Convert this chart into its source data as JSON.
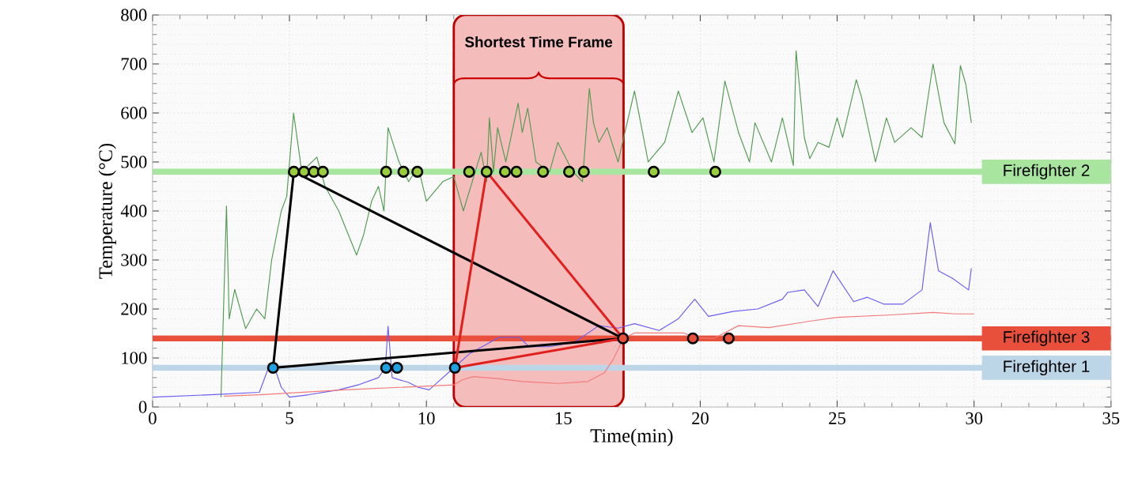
{
  "chart_data": {
    "type": "line",
    "xlabel": "Time(min)",
    "ylabel": "Temperature (°C)",
    "xlim": [
      0,
      35
    ],
    "ylim": [
      0,
      800
    ],
    "xticks": [
      0,
      5,
      10,
      15,
      20,
      25,
      30,
      35
    ],
    "yticks": [
      0,
      100,
      200,
      300,
      400,
      500,
      600,
      700,
      800
    ],
    "grid": true,
    "marker": "none",
    "line_style": "solid",
    "series": [
      {
        "type": "line",
        "color": "#4f9a4f",
        "x": [
          2.5,
          2.7,
          2.8,
          3.0,
          3.4,
          3.8,
          4.1,
          4.35,
          4.7,
          4.9,
          5.15,
          5.45,
          6.0,
          6.3,
          6.8,
          7.45,
          7.7,
          8.0,
          8.25,
          8.45,
          8.6,
          9.0,
          9.35,
          9.7,
          10.0,
          10.6,
          11.0,
          11.35,
          12.0,
          12.2,
          12.3,
          12.45,
          12.6,
          12.9,
          13.35,
          13.5,
          13.7,
          14.0,
          14.5,
          14.8,
          15.35,
          15.7,
          15.95,
          16.1,
          16.3,
          16.6,
          17.0,
          17.6,
          18.1,
          18.7,
          19.2,
          19.7,
          20.1,
          20.5,
          20.9,
          21.4,
          21.8,
          22.0,
          22.6,
          23.0,
          23.4,
          23.5,
          23.8,
          24.0,
          24.3,
          24.7,
          25.0,
          25.2,
          25.7,
          25.9,
          26.4,
          26.8,
          27.1,
          27.7,
          28.1,
          28.5,
          28.9,
          29.3,
          29.5,
          29.7,
          29.9
        ],
        "values": [
          20,
          410,
          180,
          240,
          160,
          200,
          180,
          300,
          400,
          430,
          600,
          480,
          510,
          450,
          400,
          310,
          350,
          420,
          450,
          400,
          570,
          500,
          460,
          490,
          420,
          460,
          470,
          400,
          520,
          460,
          590,
          480,
          570,
          500,
          620,
          560,
          610,
          500,
          480,
          540,
          480,
          460,
          650,
          580,
          540,
          570,
          500,
          645,
          500,
          540,
          645,
          560,
          590,
          500,
          665,
          560,
          500,
          580,
          500,
          590,
          493,
          727,
          550,
          507,
          540,
          530,
          590,
          550,
          668,
          630,
          500,
          590,
          540,
          570,
          550,
          700,
          580,
          537,
          697,
          658,
          580
        ]
      },
      {
        "type": "line",
        "color": "#6b5cf0",
        "x": [
          0,
          2.1,
          3.9,
          4.2,
          4.4,
          4.7,
          5.0,
          5.7,
          6.8,
          7.5,
          8.25,
          8.5,
          8.6,
          8.75,
          9.35,
          9.7,
          10.1,
          10.4,
          11.0,
          11.56,
          12.65,
          13.4,
          13.75,
          14.48,
          15.4,
          16.3,
          17.0,
          17.6,
          18.5,
          19.2,
          19.8,
          20.3,
          21.2,
          22.1,
          23.0,
          23.2,
          23.8,
          24.3,
          24.85,
          25.6,
          26.1,
          26.7,
          27.4,
          28.1,
          28.4,
          28.7,
          29.2,
          29.8,
          29.9
        ],
        "values": [
          20,
          25,
          30,
          75,
          90,
          40,
          20,
          25,
          35,
          45,
          60,
          80,
          165,
          60,
          50,
          40,
          35,
          50,
          80,
          108,
          142,
          142,
          123,
          123,
          132,
          166,
          161,
          170,
          156,
          180,
          220,
          185,
          195,
          200,
          220,
          234,
          239,
          205,
          278,
          215,
          224,
          210,
          210,
          239,
          376,
          278,
          263,
          239,
          283
        ]
      },
      {
        "type": "line",
        "color": "#f27a7a",
        "x": [
          2.6,
          3.9,
          7.0,
          11.0,
          11.3,
          11.7,
          12.6,
          13.5,
          14.8,
          15.9,
          16.5,
          16.8,
          17.2,
          17.6,
          19.4,
          19.9,
          20.5,
          21.4,
          22.5,
          24.0,
          25.0,
          27.0,
          28.5,
          29.3,
          30.0
        ],
        "values": [
          22,
          25,
          35,
          45,
          55,
          62,
          58,
          52,
          48,
          52,
          70,
          95,
          140,
          151,
          151,
          141,
          140,
          166,
          162,
          175,
          183,
          188,
          193,
          190,
          190
        ]
      },
      {
        "color": "#000000",
        "x": [
          4.4,
          5.16
        ],
        "values": [
          80,
          480
        ]
      },
      {
        "color": "#000000",
        "x": [
          5.16,
          17.18
        ],
        "values": [
          480,
          140
        ]
      },
      {
        "color": "#000000",
        "x": [
          4.4,
          17.18
        ],
        "values": [
          80,
          140
        ]
      },
      {
        "color": "#e0201c",
        "x": [
          11.04,
          12.2
        ],
        "values": [
          80,
          480
        ]
      },
      {
        "color": "#e0201c",
        "x": [
          12.2,
          17.18
        ],
        "values": [
          480,
          140
        ]
      },
      {
        "color": "#e0201c",
        "x": [
          11.04,
          17.18
        ],
        "values": [
          80,
          140
        ]
      },
      {
        "type": "scatter",
        "marker": "circle",
        "color": "#9acd3c",
        "x": [
          5.16,
          5.53,
          5.89,
          6.22,
          8.53,
          9.16,
          9.67,
          11.56,
          12.2,
          12.87,
          13.29,
          14.26,
          15.21,
          15.75,
          18.3,
          20.55
        ],
        "values": [
          480,
          480,
          480,
          480,
          480,
          480,
          480,
          480,
          480,
          480,
          480,
          480,
          480,
          480,
          480,
          480
        ]
      },
      {
        "type": "scatter",
        "marker": "circle",
        "color": "#1fa3e0",
        "x": [
          4.4,
          8.53,
          8.93,
          11.04
        ],
        "values": [
          80,
          80,
          80,
          80
        ]
      },
      {
        "type": "scatter",
        "marker": "circle",
        "color": "#e8503c",
        "x": [
          17.18,
          19.73,
          21.04
        ],
        "values": [
          140,
          140,
          140
        ]
      }
    ],
    "ref_lines": [
      {
        "axis": "y",
        "value": 480,
        "label": "Firefighter 2",
        "color": "#a8e6a0"
      },
      {
        "axis": "y",
        "value": 140,
        "label": "Firefighter 3",
        "color": "#e8503c"
      },
      {
        "axis": "y",
        "value": 80,
        "label": "Firefighter 1",
        "color": "#bcd6e8"
      }
    ],
    "bands": [
      {
        "axis": "x",
        "from": 11.0,
        "to": 17.2,
        "color": "#f5bcbc"
      }
    ],
    "annotations": [
      "Shortest Time Frame"
    ]
  }
}
